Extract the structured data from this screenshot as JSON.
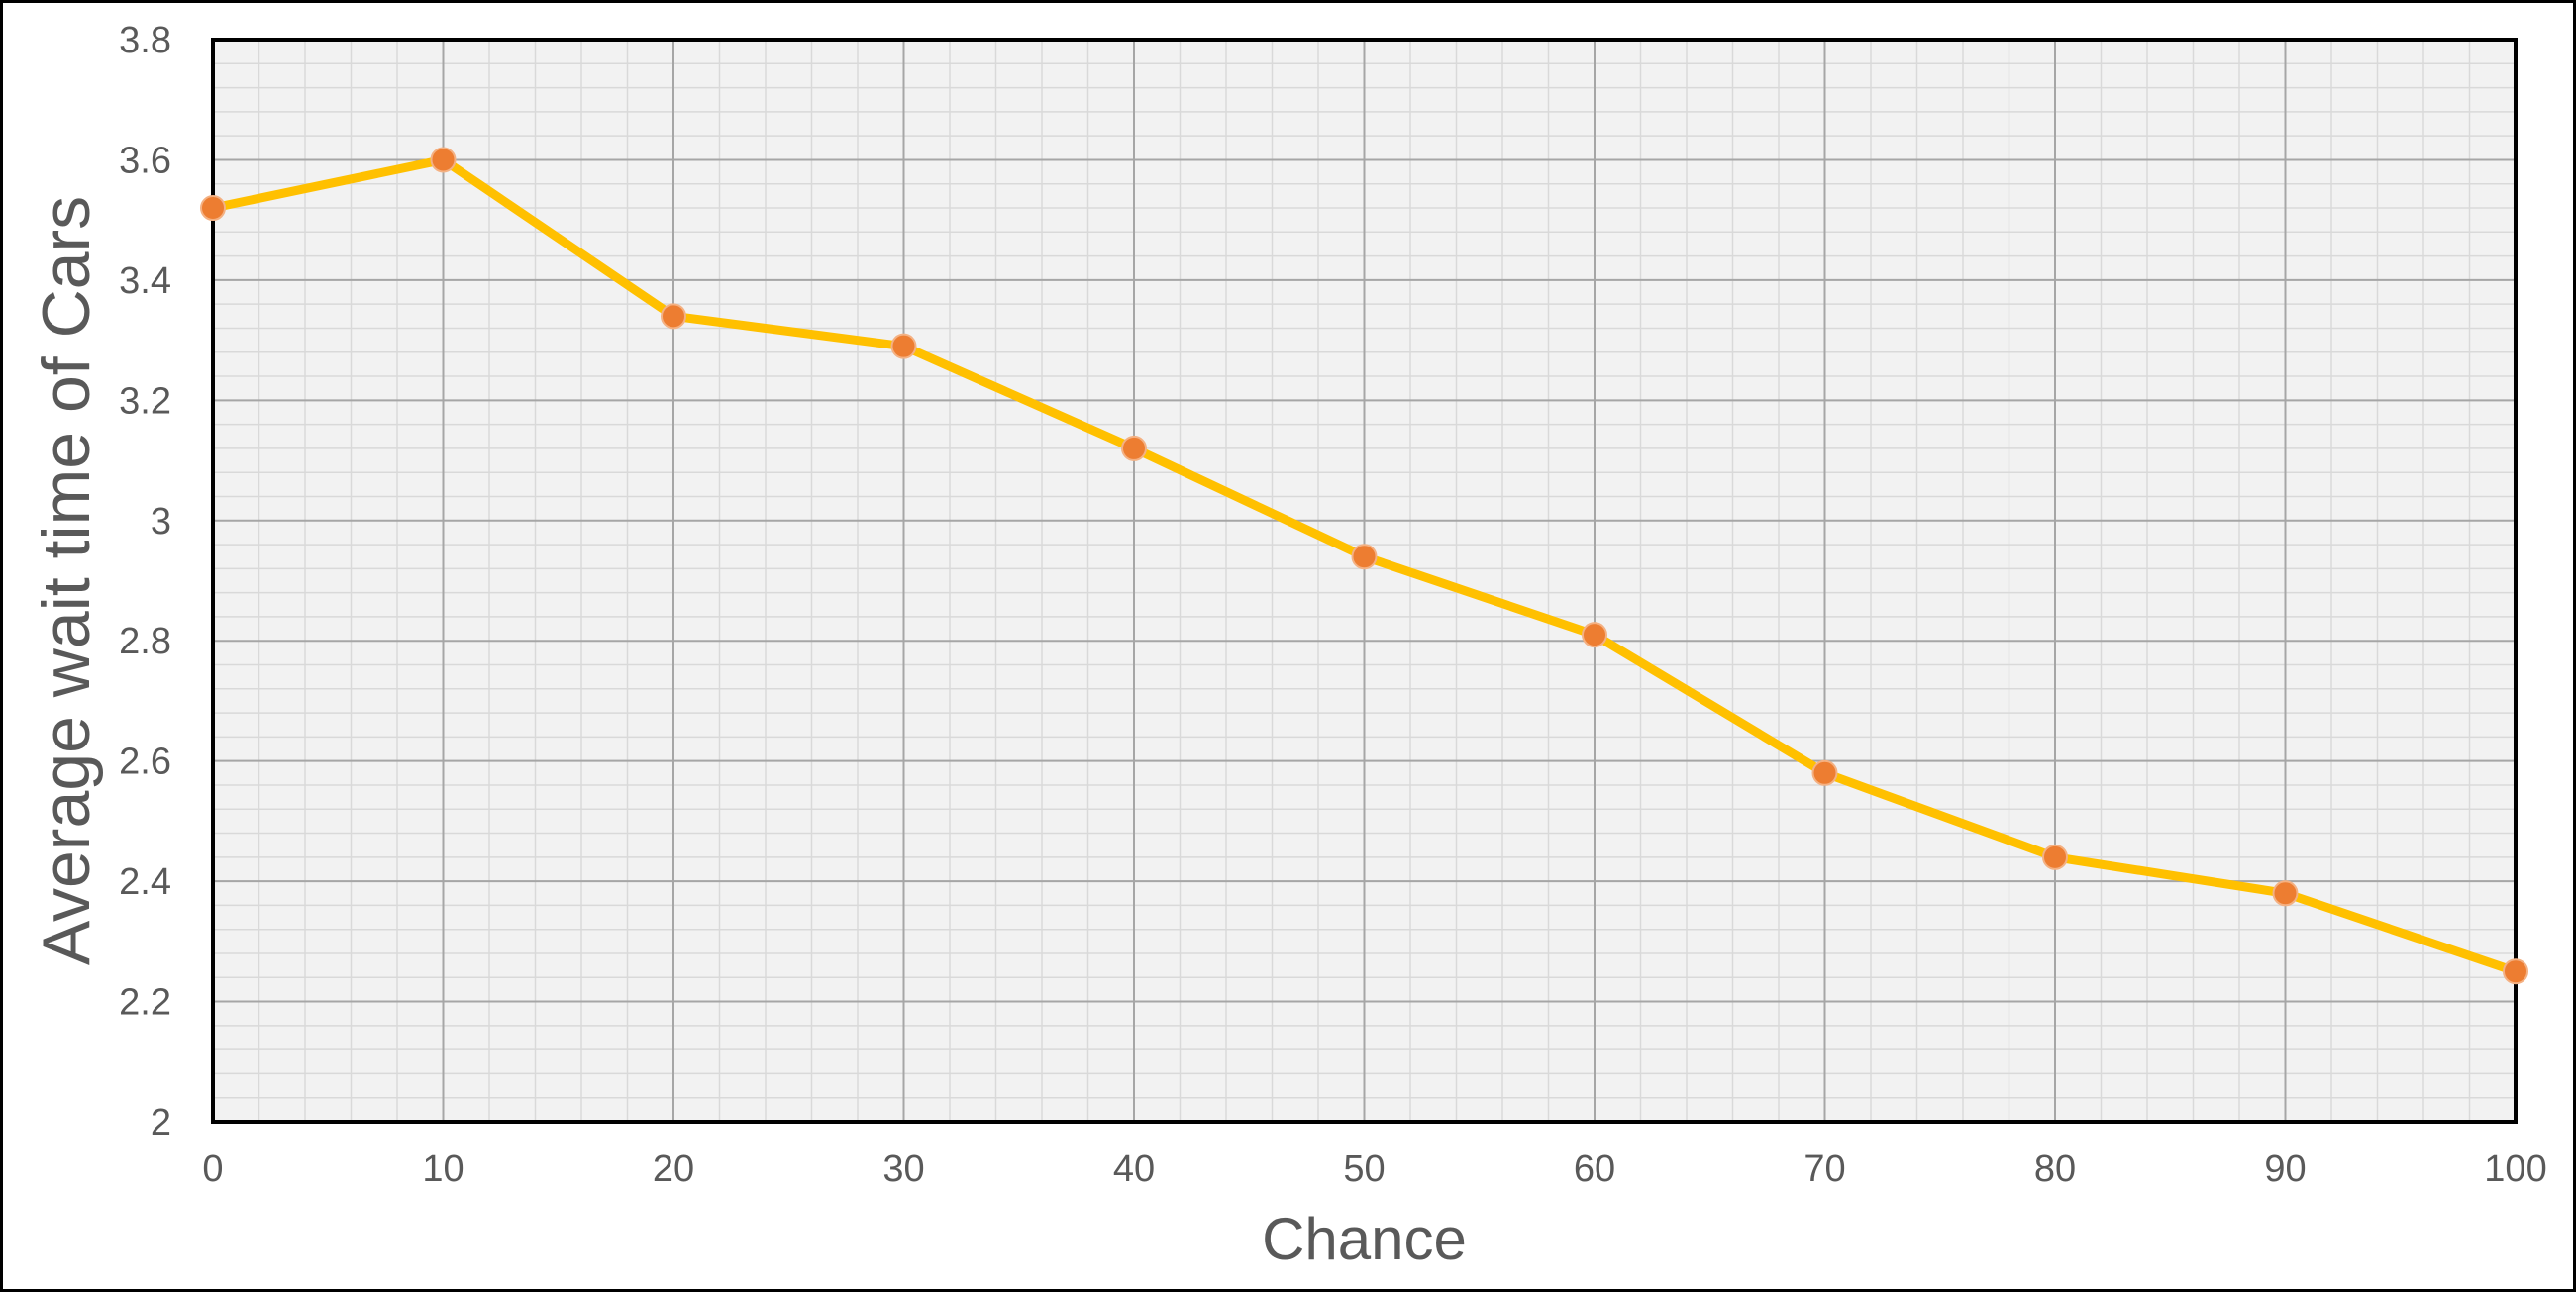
{
  "chart_data": {
    "type": "line",
    "title": "",
    "xlabel": "Chance",
    "ylabel": "Average wait time of Cars",
    "x": [
      0,
      10,
      20,
      30,
      40,
      50,
      60,
      70,
      80,
      90,
      100
    ],
    "series": [
      {
        "values": [
          3.52,
          3.6,
          3.34,
          3.29,
          3.12,
          2.94,
          2.81,
          2.58,
          2.44,
          2.38,
          2.25
        ]
      }
    ],
    "xlim": [
      0,
      100
    ],
    "ylim": [
      2,
      3.8
    ],
    "x_ticks": [
      "0",
      "10",
      "20",
      "30",
      "40",
      "50",
      "60",
      "70",
      "80",
      "90",
      "100"
    ],
    "y_ticks": [
      "2",
      "2.2",
      "2.4",
      "2.6",
      "2.8",
      "3",
      "3.2",
      "3.4",
      "3.6",
      "3.8"
    ],
    "grid": {
      "major": true,
      "minor": true
    },
    "legend": "none",
    "colors": {
      "line": "#FFC000",
      "marker": "#ED7D31",
      "plot_background": "#F2F2F2",
      "major_grid": "#A6A6A6",
      "minor_grid": "#D9D9D9",
      "text": "#595959",
      "axis": "#000000"
    }
  }
}
